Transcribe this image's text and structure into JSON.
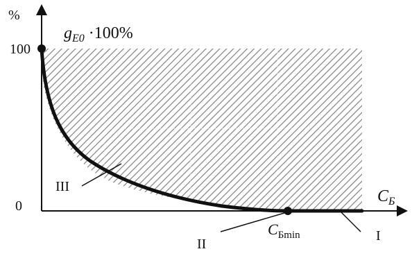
{
  "diagram": {
    "y_unit": "%",
    "y_tick_top": "100",
    "y_tick_bottom": "0",
    "ratio_label_main": "g",
    "ratio_label_sub": "E0",
    "ratio_label_suffix": " ·100%",
    "x_axis_label_main": "C",
    "x_axis_label_sub": "Б",
    "cmin_label_main": "C",
    "cmin_label_sub": "Бmin",
    "region_I": "I",
    "region_II": "II",
    "region_III": "III"
  },
  "colors": {
    "ink": "#111111",
    "hatch": "#8a8a8a",
    "background": "#ffffff"
  }
}
